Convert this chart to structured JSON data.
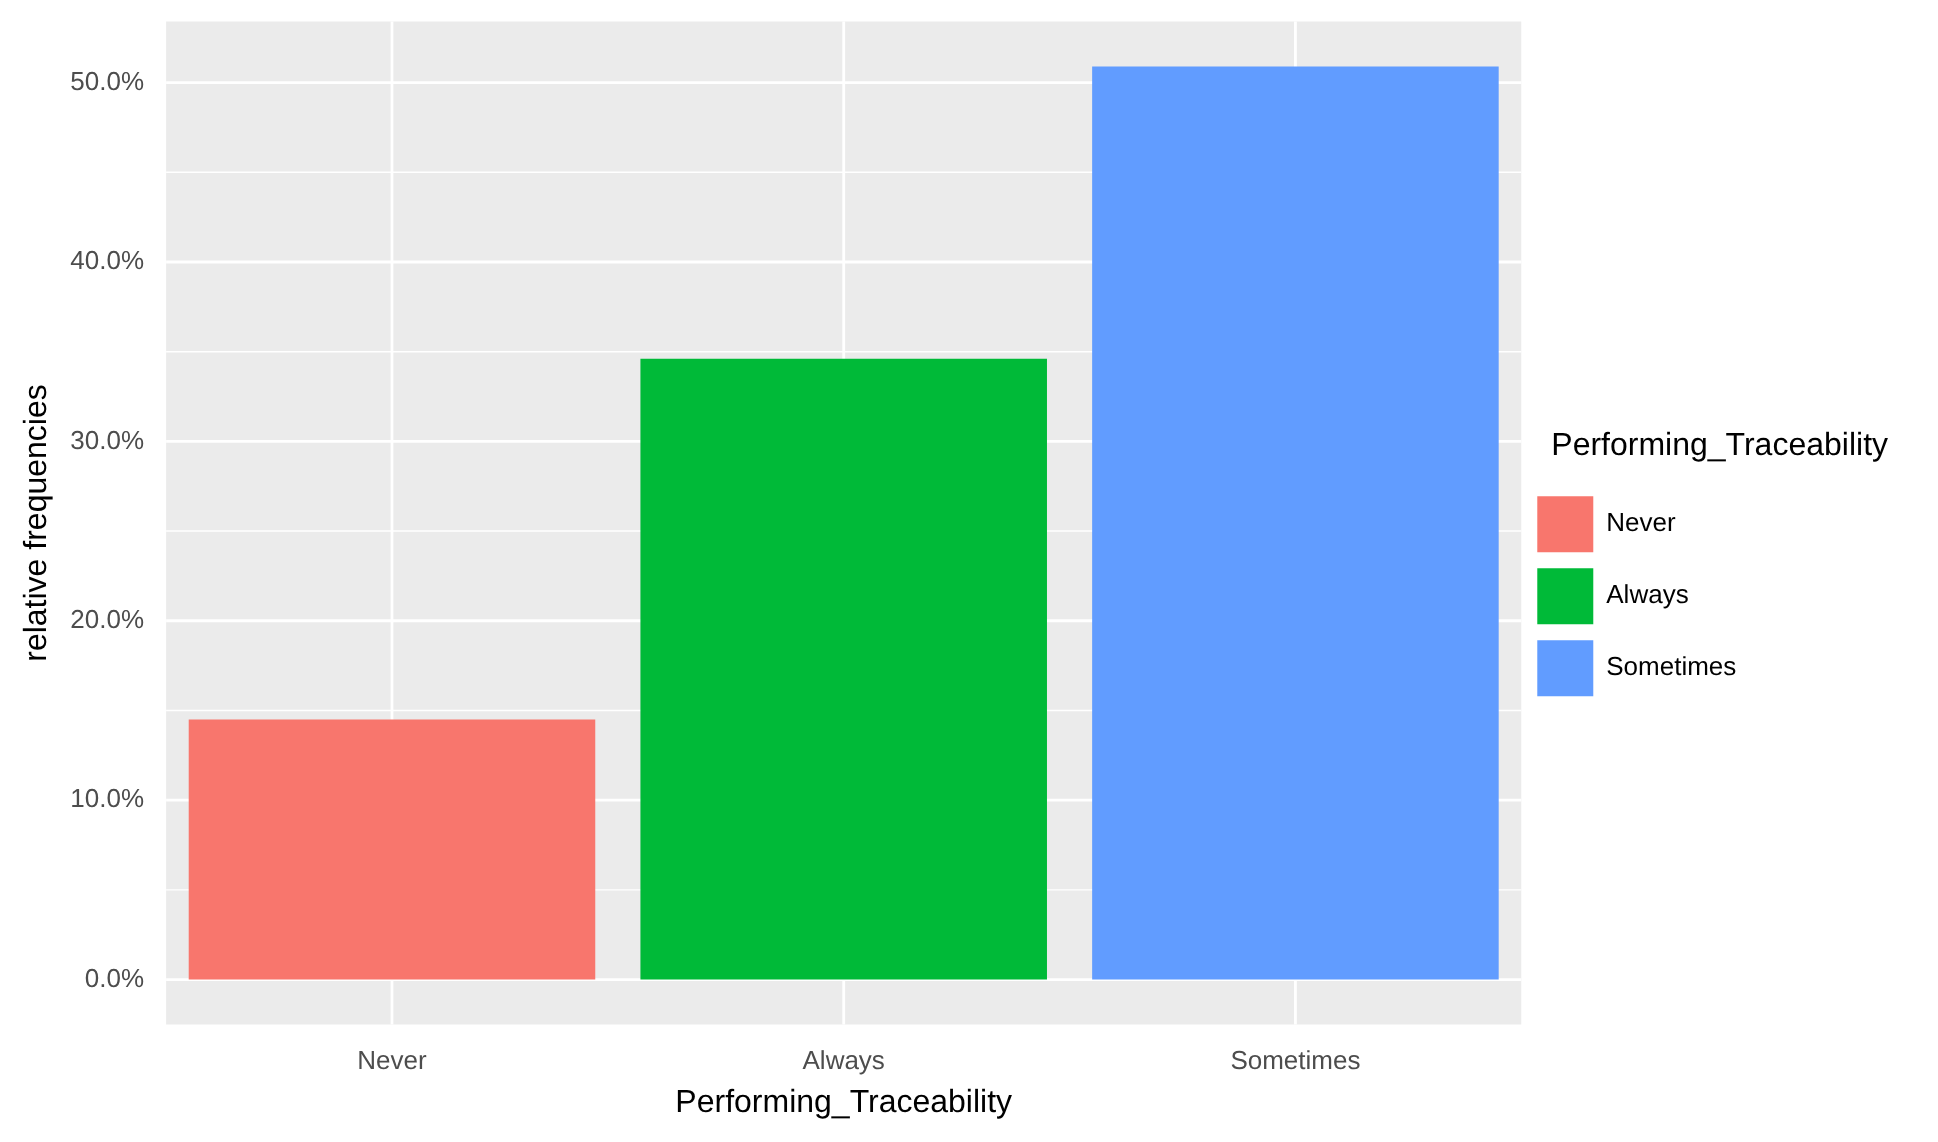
{
  "chart_data": {
    "type": "bar",
    "xlabel": "Performing_Traceability",
    "ylabel": "relative frequencies",
    "legend_title": "Performing_Traceability",
    "categories": [
      "Never",
      "Always",
      "Sometimes"
    ],
    "series": [
      {
        "name": "Never",
        "color": "#f8766d",
        "values": [
          14.5,
          null,
          null
        ]
      },
      {
        "name": "Always",
        "color": "#00ba38",
        "values": [
          null,
          34.6,
          null
        ]
      },
      {
        "name": "Sometimes",
        "color": "#619cff",
        "values": [
          null,
          null,
          50.9
        ]
      }
    ],
    "ylim": [
      -2.5,
      53.4
    ],
    "yticks": [
      {
        "value": 0,
        "label": "0.0%"
      },
      {
        "value": 10,
        "label": "10.0%"
      },
      {
        "value": 20,
        "label": "20.0%"
      },
      {
        "value": 30,
        "label": "30.0%"
      },
      {
        "value": 40,
        "label": "40.0%"
      },
      {
        "value": 50,
        "label": "50.0%"
      }
    ],
    "grid": true,
    "legend": "right"
  }
}
